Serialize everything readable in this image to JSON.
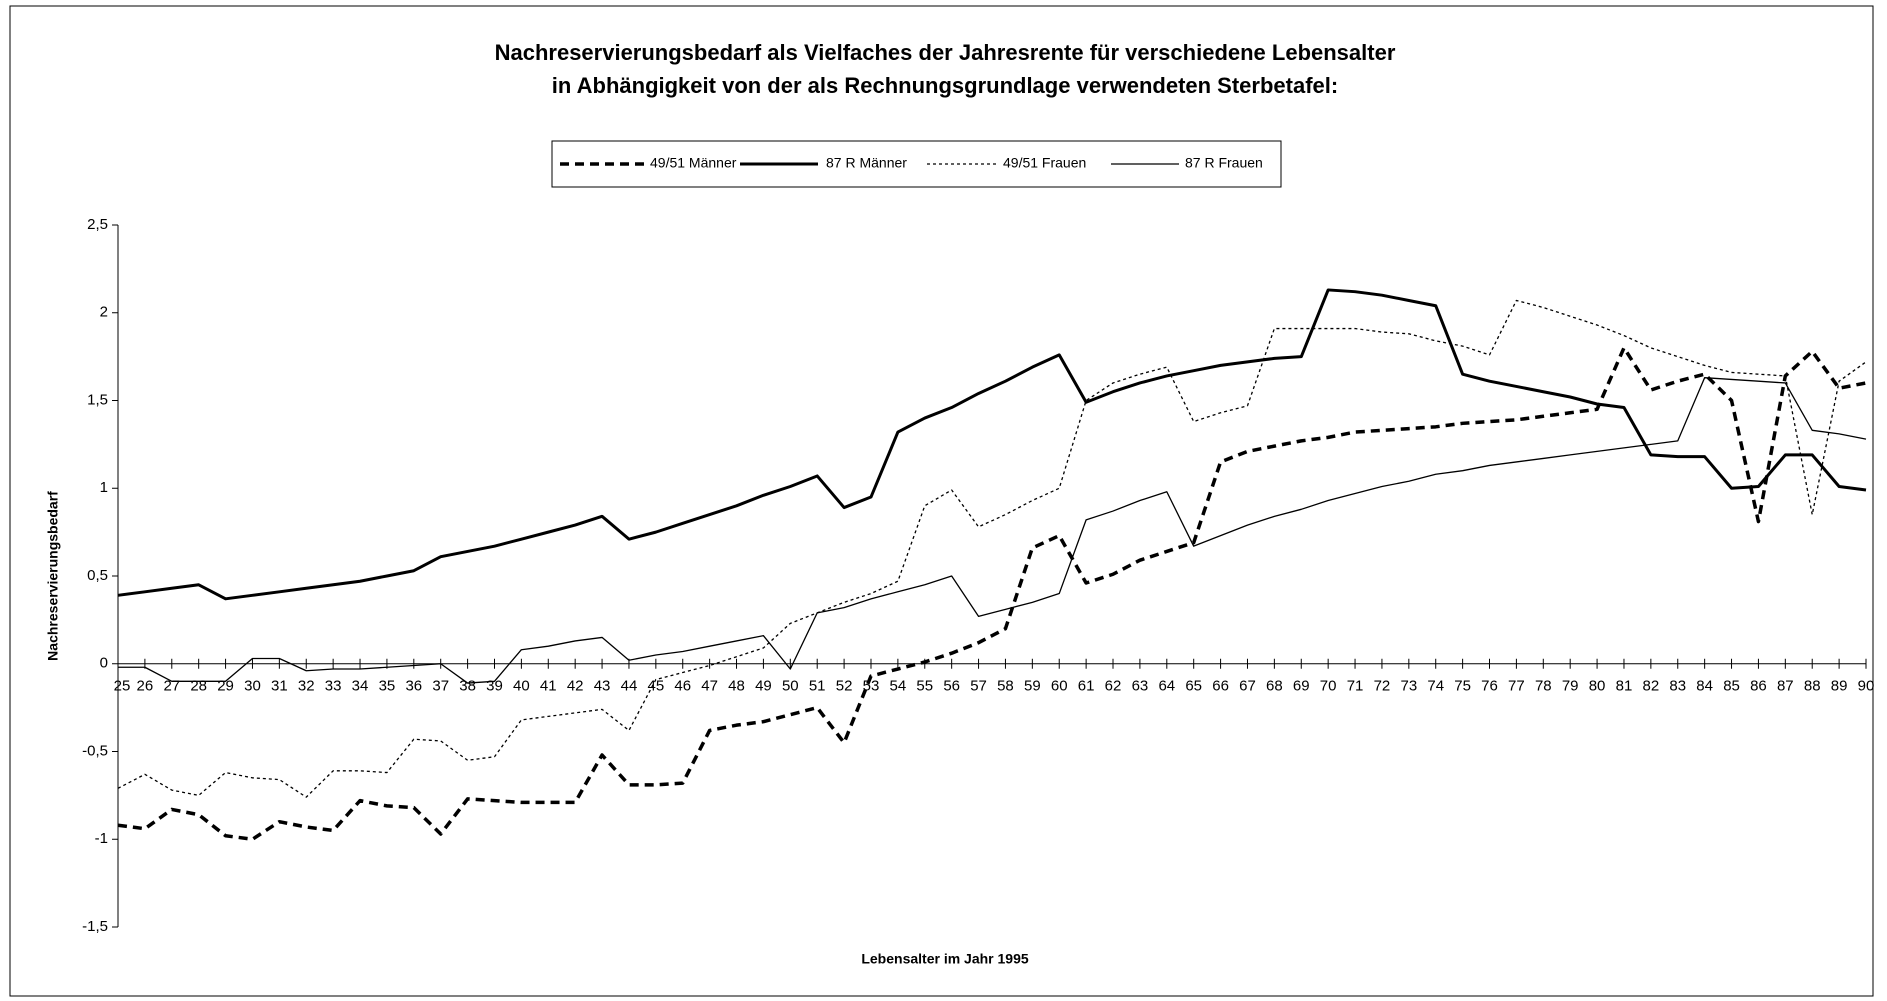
{
  "chart_data": {
    "type": "line",
    "title": [
      "Nachreservierungsbedarf als Vielfaches der Jahresrente für verschiedene Lebensalter",
      "in Abhängigkeit von der als Rechnungsgrundlage verwendeten Sterbetafel:"
    ],
    "x_label": "Lebensalter im Jahr 1995",
    "y_label": "Nachreservierungsbedarf",
    "x": [
      25,
      26,
      27,
      28,
      29,
      30,
      31,
      32,
      33,
      34,
      35,
      36,
      37,
      38,
      39,
      40,
      41,
      42,
      43,
      44,
      45,
      46,
      47,
      48,
      49,
      50,
      51,
      52,
      53,
      54,
      55,
      56,
      57,
      58,
      59,
      60,
      61,
      62,
      63,
      64,
      65,
      66,
      67,
      68,
      69,
      70,
      71,
      72,
      73,
      74,
      75,
      76,
      77,
      78,
      79,
      80,
      81,
      82,
      83,
      84,
      85,
      86,
      87,
      88,
      89,
      90
    ],
    "xlim": [
      25,
      90
    ],
    "xticks": [
      25,
      26,
      27,
      28,
      29,
      30,
      31,
      32,
      33,
      34,
      35,
      36,
      37,
      38,
      39,
      40,
      41,
      42,
      43,
      44,
      45,
      46,
      47,
      48,
      49,
      50,
      51,
      52,
      53,
      54,
      55,
      56,
      57,
      58,
      59,
      60,
      61,
      62,
      63,
      64,
      65,
      66,
      67,
      68,
      69,
      70,
      71,
      72,
      73,
      74,
      75,
      76,
      77,
      78,
      79,
      80,
      81,
      82,
      83,
      84,
      85,
      86,
      87,
      88,
      89,
      90
    ],
    "ylim": [
      -1.5,
      2.5
    ],
    "yticks": [
      {
        "value": 2.5,
        "label": "2,5"
      },
      2,
      {
        "value": 1.5,
        "label": "1,5"
      },
      1,
      {
        "value": 0.5,
        "label": "0,5"
      },
      0,
      {
        "value": -0.5,
        "label": "-0,5"
      },
      -1,
      {
        "value": -1.5,
        "label": "-1,5"
      }
    ],
    "grid": false,
    "series": [
      {
        "name": "49/51 Männer",
        "color": "#000000",
        "values": [
          -0.92,
          -0.94,
          -0.83,
          -0.86,
          -0.98,
          -1.0,
          -0.9,
          -0.93,
          -0.95,
          -0.78,
          -0.81,
          -0.82,
          -0.97,
          -0.77,
          -0.78,
          -0.79,
          -0.79,
          -0.79,
          -0.52,
          -0.69,
          -0.69,
          -0.68,
          -0.38,
          -0.35,
          -0.33,
          -0.29,
          -0.25,
          -0.45,
          -0.07,
          -0.03,
          0.01,
          0.06,
          0.12,
          0.2,
          0.66,
          0.73,
          0.46,
          0.51,
          0.59,
          0.64,
          0.69,
          1.15,
          1.21,
          1.24,
          1.27,
          1.29,
          1.32,
          1.33,
          1.34,
          1.35,
          1.37,
          1.38,
          1.39,
          1.41,
          1.43,
          1.45,
          1.8,
          1.56,
          1.61,
          1.65,
          1.5,
          0.81,
          1.64,
          1.78,
          1.57,
          1.6
        ]
      },
      {
        "name": "87 R Männer",
        "color": "#000000",
        "values": [
          0.39,
          0.41,
          0.43,
          0.45,
          0.37,
          0.39,
          0.41,
          0.43,
          0.45,
          0.47,
          0.5,
          0.53,
          0.61,
          0.64,
          0.67,
          0.71,
          0.75,
          0.79,
          0.84,
          0.71,
          0.75,
          0.8,
          0.85,
          0.9,
          0.96,
          1.01,
          1.07,
          0.89,
          0.95,
          1.32,
          1.4,
          1.46,
          1.54,
          1.61,
          1.69,
          1.76,
          1.49,
          1.55,
          1.6,
          1.64,
          1.67,
          1.7,
          1.72,
          1.74,
          1.75,
          2.13,
          2.12,
          2.1,
          2.07,
          2.04,
          1.65,
          1.61,
          1.58,
          1.55,
          1.52,
          1.48,
          1.46,
          1.19,
          1.18,
          1.18,
          1.0,
          1.01,
          1.19,
          1.19,
          1.01,
          0.99
        ]
      },
      {
        "name": "49/51 Frauen",
        "color": "#000000",
        "values": [
          -0.71,
          -0.63,
          -0.72,
          -0.75,
          -0.62,
          -0.65,
          -0.66,
          -0.76,
          -0.61,
          -0.61,
          -0.62,
          -0.43,
          -0.44,
          -0.55,
          -0.53,
          -0.32,
          -0.3,
          -0.28,
          -0.26,
          -0.38,
          -0.09,
          -0.05,
          -0.01,
          0.04,
          0.09,
          0.23,
          0.29,
          0.35,
          0.4,
          0.47,
          0.9,
          0.99,
          0.78,
          0.85,
          0.93,
          1.0,
          1.5,
          1.6,
          1.65,
          1.69,
          1.38,
          1.43,
          1.47,
          1.91,
          1.91,
          1.91,
          1.91,
          1.89,
          1.88,
          1.84,
          1.81,
          1.76,
          2.07,
          2.03,
          1.98,
          1.93,
          1.87,
          1.8,
          1.75,
          1.7,
          1.66,
          1.65,
          1.64,
          0.85,
          1.61,
          1.72
        ]
      },
      {
        "name": "87 R Frauen",
        "color": "#000000",
        "values": [
          -0.02,
          -0.02,
          -0.1,
          -0.1,
          -0.1,
          0.03,
          0.03,
          -0.04,
          -0.03,
          -0.03,
          -0.02,
          -0.01,
          0.0,
          -0.11,
          -0.1,
          0.08,
          0.1,
          0.13,
          0.15,
          0.02,
          0.05,
          0.07,
          0.1,
          0.13,
          0.16,
          -0.03,
          0.29,
          0.32,
          0.37,
          0.41,
          0.45,
          0.5,
          0.27,
          0.31,
          0.35,
          0.4,
          0.82,
          0.87,
          0.93,
          0.98,
          0.67,
          0.73,
          0.79,
          0.84,
          0.88,
          0.93,
          0.97,
          1.01,
          1.04,
          1.08,
          1.1,
          1.13,
          1.15,
          1.17,
          1.19,
          1.21,
          1.23,
          1.25,
          1.27,
          1.63,
          1.62,
          1.61,
          1.6,
          1.33,
          1.31,
          1.28
        ]
      }
    ]
  }
}
